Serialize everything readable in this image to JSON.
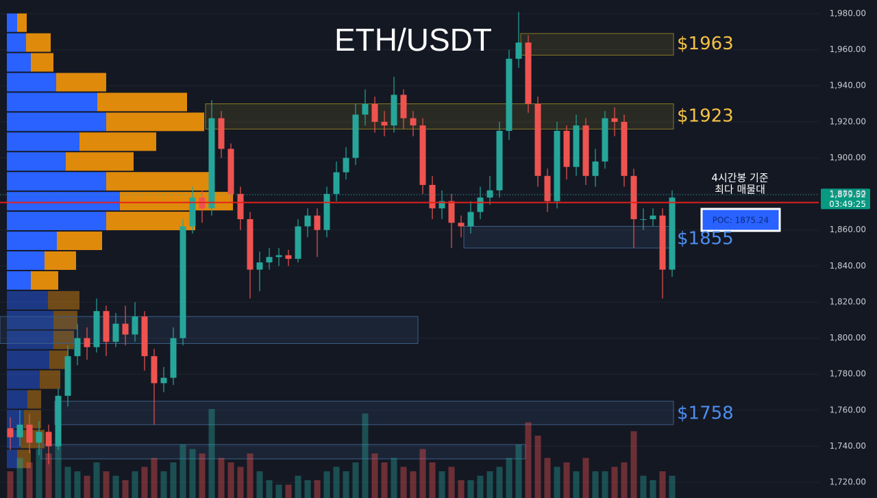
{
  "chart_data": {
    "type": "candlestick",
    "title": "ETH/USDT",
    "ylim": [
      1711.3,
      1987.6
    ],
    "yticks": [
      {
        "value": 1720,
        "label": "1,720.00"
      },
      {
        "value": 1740,
        "label": "1,740.00"
      },
      {
        "value": 1760,
        "label": "1,760.00"
      },
      {
        "value": 1780,
        "label": "1,780.00"
      },
      {
        "value": 1800,
        "label": "1,800.00"
      },
      {
        "value": 1820,
        "label": "1,820.00"
      },
      {
        "value": 1840,
        "label": "1,840.00"
      },
      {
        "value": 1860,
        "label": "1,860.00"
      },
      {
        "value": 1880,
        "label": "1,880.00"
      },
      {
        "value": 1900,
        "label": "1,900.00"
      },
      {
        "value": 1920,
        "label": "1,920.00"
      },
      {
        "value": 1940,
        "label": "1,940.00"
      },
      {
        "value": 1960,
        "label": "1,960.00"
      },
      {
        "value": 1980,
        "label": "1,980.00"
      }
    ],
    "up_color": "#26a69a",
    "down_color": "#ef5350",
    "open": [
      1750,
      1745,
      1752,
      1742,
      1748,
      1740,
      1768,
      1790,
      1800,
      1795,
      1815,
      1798,
      1808,
      1802,
      1812,
      1790,
      1775,
      1778,
      1800,
      1862,
      1878,
      1872,
      1922,
      1905,
      1880,
      1866,
      1838,
      1842,
      1845,
      1846,
      1844,
      1862,
      1868,
      1860,
      1880,
      1892,
      1900,
      1924,
      1930,
      1920,
      1918,
      1935,
      1922,
      1918,
      1885,
      1872,
      1876,
      1864,
      1862,
      1870,
      1878,
      1882,
      1915,
      1955,
      1964,
      1930,
      1890,
      1876,
      1915,
      1895,
      1918,
      1890,
      1898,
      1922,
      1920,
      1890,
      1866,
      1866,
      1868,
      1838
    ],
    "high": [
      1756,
      1760,
      1758,
      1754,
      1752,
      1772,
      1796,
      1808,
      1806,
      1822,
      1818,
      1814,
      1818,
      1820,
      1815,
      1794,
      1784,
      1806,
      1866,
      1884,
      1882,
      1932,
      1926,
      1908,
      1884,
      1870,
      1848,
      1850,
      1850,
      1849,
      1866,
      1872,
      1872,
      1884,
      1898,
      1906,
      1930,
      1938,
      1934,
      1926,
      1945,
      1938,
      1926,
      1922,
      1890,
      1882,
      1880,
      1868,
      1876,
      1884,
      1890,
      1920,
      1960,
      1981,
      1968,
      1934,
      1894,
      1920,
      1918,
      1924,
      1922,
      1905,
      1926,
      1928,
      1924,
      1894,
      1872,
      1872,
      1872,
      1882
    ],
    "low": [
      1738,
      1740,
      1736,
      1735,
      1730,
      1738,
      1762,
      1785,
      1788,
      1792,
      1790,
      1795,
      1796,
      1798,
      1782,
      1752,
      1770,
      1774,
      1796,
      1858,
      1864,
      1868,
      1900,
      1875,
      1860,
      1822,
      1826,
      1838,
      1840,
      1840,
      1842,
      1856,
      1845,
      1856,
      1876,
      1888,
      1896,
      1918,
      1914,
      1912,
      1914,
      1916,
      1912,
      1880,
      1866,
      1866,
      1850,
      1856,
      1858,
      1866,
      1874,
      1878,
      1910,
      1950,
      1925,
      1884,
      1870,
      1872,
      1888,
      1890,
      1885,
      1884,
      1894,
      1912,
      1884,
      1850,
      1860,
      1862,
      1822,
      1834
    ],
    "close": [
      1745,
      1752,
      1742,
      1748,
      1740,
      1768,
      1790,
      1800,
      1795,
      1815,
      1798,
      1808,
      1802,
      1812,
      1790,
      1775,
      1778,
      1800,
      1862,
      1878,
      1872,
      1922,
      1905,
      1880,
      1866,
      1838,
      1842,
      1845,
      1846,
      1844,
      1862,
      1868,
      1860,
      1880,
      1892,
      1900,
      1924,
      1930,
      1920,
      1918,
      1935,
      1922,
      1918,
      1885,
      1872,
      1876,
      1864,
      1862,
      1870,
      1878,
      1882,
      1915,
      1955,
      1964,
      1930,
      1890,
      1876,
      1915,
      1895,
      1918,
      1890,
      1898,
      1922,
      1920,
      1890,
      1866,
      1866,
      1868,
      1838,
      1878
    ],
    "volume": [
      30,
      45,
      40,
      55,
      50,
      60,
      35,
      30,
      25,
      40,
      30,
      25,
      20,
      30,
      35,
      45,
      30,
      40,
      60,
      55,
      50,
      100,
      45,
      40,
      35,
      50,
      30,
      20,
      15,
      15,
      25,
      20,
      20,
      30,
      35,
      30,
      40,
      95,
      50,
      40,
      45,
      35,
      30,
      55,
      40,
      30,
      35,
      20,
      20,
      25,
      30,
      35,
      45,
      60,
      85,
      70,
      45,
      35,
      40,
      30,
      45,
      30,
      30,
      35,
      40,
      75,
      25,
      20,
      30,
      25
    ],
    "profile": {
      "prices": [
        1975,
        1964,
        1953,
        1942,
        1931,
        1920,
        1909,
        1898,
        1887,
        1876,
        1865,
        1854,
        1843,
        1832,
        1821,
        1810,
        1799,
        1788,
        1777,
        1766,
        1755,
        1744,
        1733
      ],
      "buy": [
        15,
        28,
        35,
        72,
        132,
        145,
        106,
        86,
        145,
        165,
        145,
        73,
        55,
        35,
        60,
        68,
        68,
        62,
        48,
        30,
        25,
        20,
        15
      ],
      "sell": [
        14,
        36,
        33,
        73,
        131,
        143,
        112,
        99,
        150,
        165,
        130,
        66,
        46,
        40,
        46,
        35,
        30,
        28,
        30,
        20,
        25,
        35,
        20
      ]
    },
    "levels": [
      {
        "value": 1963,
        "label": "$1963",
        "color": "#f5c242",
        "low": 1957,
        "high": 1969
      },
      {
        "value": 1923,
        "label": "$1923",
        "color": "#f5c242",
        "low": 1916,
        "high": 1930
      },
      {
        "value": 1855,
        "label": "$1855",
        "color": "#4d8ef0",
        "low": 1850,
        "high": 1862
      },
      {
        "value": 1758,
        "label": "$1758",
        "color": "#4d8ef0",
        "low": 1752,
        "high": 1765
      }
    ],
    "zones": [
      {
        "low": 1797,
        "high": 1812
      },
      {
        "low": 1733,
        "high": 1741
      }
    ],
    "last_price": {
      "value": 1879.52,
      "label": "1,879.52",
      "countdown": "03:49:25"
    },
    "poc": {
      "value": 1875.24,
      "label": "POC: 1875.24",
      "note": [
        "4시간봉 기준",
        "최다 매물대"
      ]
    }
  }
}
